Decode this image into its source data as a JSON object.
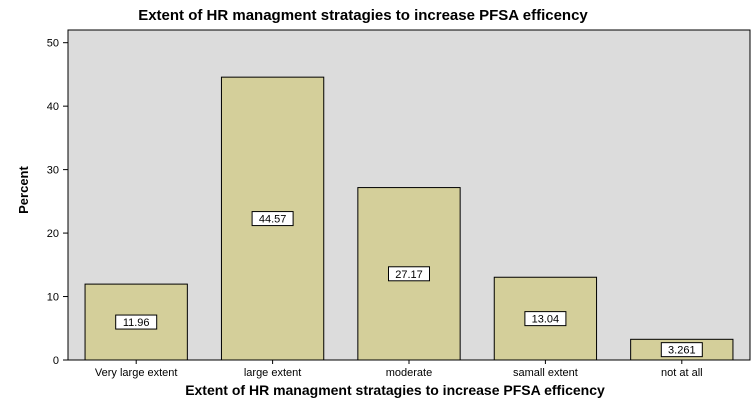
{
  "chart_data": {
    "type": "bar",
    "title": "Extent of HR managment stratagies to increase PFSA efficency",
    "xlabel": "Extent of HR managment stratagies to increase PFSA efficency",
    "ylabel": "Percent",
    "categories": [
      "Very large extent",
      "large extent",
      "moderate",
      "samall extent",
      "not at all"
    ],
    "values": [
      11.96,
      44.57,
      27.17,
      13.04,
      3.261
    ],
    "data_labels": [
      "11.96",
      "44.57",
      "27.17",
      "13.04",
      "3.261"
    ],
    "ylim": [
      0,
      52
    ],
    "yticks": [
      0,
      10,
      20,
      30,
      40,
      50
    ],
    "grid": false,
    "colors": {
      "plot_background": "#dcdcdc",
      "bar_fill": "#d4cf9a",
      "bar_stroke": "#000000",
      "label_box_fill": "#ffffff"
    }
  }
}
